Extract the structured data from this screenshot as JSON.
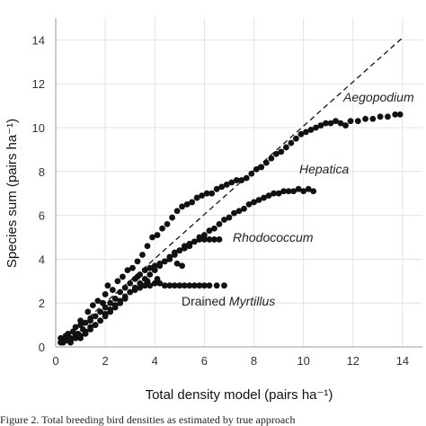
{
  "caption": "Figure 2. Total breeding bird densities as estimated by true approach",
  "chart_data": {
    "type": "scatter",
    "xlabel": "Total density model (pairs ha⁻¹)",
    "ylabel": "Species sum (pairs ha⁻¹)",
    "xlim": [
      0,
      14.8
    ],
    "ylim": [
      0,
      15
    ],
    "xticks": [
      0,
      2,
      4,
      6,
      8,
      10,
      12,
      14
    ],
    "yticks": [
      0,
      2,
      4,
      6,
      8,
      10,
      12,
      14
    ],
    "grid": true,
    "reference_line": {
      "style": "dashed",
      "x": [
        0.25,
        14.0
      ],
      "y": [
        0.25,
        14.1
      ]
    },
    "annotations": [
      {
        "text": "Aegopodium",
        "italic": true,
        "x": 11.6,
        "y": 11.4
      },
      {
        "text": "Hepatica",
        "italic": true,
        "x": 9.7,
        "y": 8.1
      },
      {
        "text": "Rhodococcum",
        "italic": true,
        "x": 7.3,
        "y": 5.0
      },
      {
        "prefix": "Drained ",
        "text": "Myrtillus",
        "italic": true,
        "x": 5.1,
        "y": 1.9
      }
    ],
    "colors": {
      "points": "#111111",
      "grid": "#e3e3e3",
      "axis": "#999999",
      "reference": "#222222"
    },
    "series": [
      {
        "points": [
          [
            0.3,
            0.3
          ],
          [
            0.5,
            0.6
          ],
          [
            0.6,
            0.4
          ],
          [
            0.8,
            0.9
          ],
          [
            1.0,
            1.2
          ],
          [
            1.1,
            0.8
          ],
          [
            1.3,
            1.6
          ],
          [
            1.4,
            1.3
          ],
          [
            1.5,
            1.9
          ],
          [
            1.7,
            2.1
          ],
          [
            1.9,
            2.0
          ],
          [
            2.0,
            2.4
          ],
          [
            2.1,
            2.8
          ],
          [
            2.3,
            2.6
          ],
          [
            2.5,
            3.0
          ],
          [
            2.7,
            3.2
          ],
          [
            2.9,
            3.5
          ],
          [
            3.1,
            3.6
          ],
          [
            3.3,
            3.9
          ],
          [
            3.5,
            4.2
          ],
          [
            3.7,
            4.6
          ],
          [
            3.9,
            5.0
          ],
          [
            4.1,
            5.1
          ],
          [
            4.3,
            5.4
          ],
          [
            4.5,
            5.6
          ],
          [
            4.7,
            5.9
          ],
          [
            4.9,
            6.2
          ],
          [
            5.1,
            6.4
          ],
          [
            5.3,
            6.5
          ],
          [
            5.5,
            6.6
          ],
          [
            5.7,
            6.8
          ],
          [
            5.9,
            6.9
          ],
          [
            6.1,
            7.0
          ],
          [
            6.3,
            7.0
          ],
          [
            6.5,
            7.2
          ],
          [
            6.7,
            7.3
          ],
          [
            6.9,
            7.4
          ],
          [
            7.1,
            7.5
          ],
          [
            7.3,
            7.6
          ],
          [
            7.5,
            7.6
          ],
          [
            7.7,
            7.7
          ],
          [
            7.9,
            7.9
          ],
          [
            8.1,
            8.1
          ],
          [
            8.3,
            8.2
          ],
          [
            8.5,
            8.4
          ],
          [
            8.7,
            8.6
          ],
          [
            8.9,
            8.8
          ],
          [
            9.1,
            8.9
          ],
          [
            9.3,
            9.1
          ],
          [
            9.5,
            9.3
          ],
          [
            9.7,
            9.5
          ],
          [
            9.9,
            9.7
          ],
          [
            10.1,
            9.8
          ],
          [
            10.3,
            9.9
          ],
          [
            10.5,
            10.0
          ],
          [
            10.7,
            10.1
          ],
          [
            10.9,
            10.2
          ],
          [
            11.1,
            10.2
          ],
          [
            11.3,
            10.3
          ],
          [
            11.5,
            10.2
          ],
          [
            11.7,
            10.1
          ],
          [
            11.9,
            10.3
          ],
          [
            12.2,
            10.3
          ],
          [
            12.5,
            10.4
          ],
          [
            12.8,
            10.4
          ],
          [
            13.1,
            10.5
          ],
          [
            13.4,
            10.5
          ],
          [
            13.7,
            10.6
          ],
          [
            13.9,
            10.6
          ]
        ]
      },
      {
        "points": [
          [
            0.2,
            0.4
          ],
          [
            0.4,
            0.5
          ],
          [
            0.5,
            0.3
          ],
          [
            0.7,
            0.7
          ],
          [
            0.9,
            0.6
          ],
          [
            1.0,
            1.0
          ],
          [
            1.2,
            1.1
          ],
          [
            1.4,
            1.2
          ],
          [
            1.6,
            1.4
          ],
          [
            1.8,
            1.6
          ],
          [
            2.0,
            1.8
          ],
          [
            2.2,
            2.0
          ],
          [
            2.4,
            2.2
          ],
          [
            2.6,
            2.5
          ],
          [
            2.8,
            2.7
          ],
          [
            3.0,
            2.9
          ],
          [
            3.2,
            3.1
          ],
          [
            3.4,
            3.3
          ],
          [
            3.6,
            3.5
          ],
          [
            3.8,
            3.6
          ],
          [
            4.0,
            3.7
          ],
          [
            4.2,
            3.8
          ],
          [
            4.4,
            3.9
          ],
          [
            4.6,
            4.0
          ],
          [
            4.8,
            4.2
          ],
          [
            5.0,
            4.4
          ],
          [
            5.2,
            4.5
          ],
          [
            5.4,
            4.6
          ],
          [
            5.6,
            4.8
          ],
          [
            5.8,
            5.0
          ],
          [
            6.0,
            5.1
          ],
          [
            6.2,
            5.3
          ],
          [
            6.4,
            5.4
          ],
          [
            6.6,
            5.6
          ],
          [
            6.8,
            5.8
          ],
          [
            7.0,
            5.9
          ],
          [
            7.2,
            6.1
          ],
          [
            7.4,
            6.2
          ],
          [
            7.6,
            6.3
          ],
          [
            7.8,
            6.5
          ],
          [
            8.0,
            6.6
          ],
          [
            8.2,
            6.7
          ],
          [
            8.4,
            6.8
          ],
          [
            8.6,
            6.9
          ],
          [
            8.8,
            7.0
          ],
          [
            9.0,
            7.0
          ],
          [
            9.2,
            7.1
          ],
          [
            9.4,
            7.1
          ],
          [
            9.6,
            7.1
          ],
          [
            9.8,
            7.2
          ],
          [
            10.0,
            7.1
          ],
          [
            10.2,
            7.2
          ],
          [
            10.4,
            7.1
          ]
        ]
      },
      {
        "points": [
          [
            0.3,
            0.2
          ],
          [
            0.6,
            0.3
          ],
          [
            0.8,
            0.5
          ],
          [
            1.0,
            0.4
          ],
          [
            1.2,
            0.7
          ],
          [
            1.4,
            0.9
          ],
          [
            1.6,
            1.0
          ],
          [
            1.8,
            1.2
          ],
          [
            2.0,
            1.4
          ],
          [
            2.2,
            1.6
          ],
          [
            2.4,
            1.8
          ],
          [
            2.6,
            2.0
          ],
          [
            2.8,
            2.2
          ],
          [
            3.0,
            2.5
          ],
          [
            3.2,
            2.7
          ],
          [
            3.4,
            2.9
          ],
          [
            3.6,
            3.1
          ],
          [
            3.8,
            3.3
          ],
          [
            4.0,
            3.5
          ],
          [
            4.2,
            3.7
          ],
          [
            4.4,
            3.9
          ],
          [
            4.6,
            4.1
          ],
          [
            4.8,
            4.3
          ],
          [
            5.0,
            4.4
          ],
          [
            5.2,
            4.6
          ],
          [
            5.4,
            4.7
          ],
          [
            5.6,
            4.8
          ],
          [
            5.8,
            4.9
          ],
          [
            6.0,
            4.9
          ],
          [
            6.2,
            4.9
          ],
          [
            6.4,
            4.9
          ],
          [
            6.6,
            4.9
          ],
          [
            4.9,
            3.8
          ],
          [
            5.1,
            3.7
          ]
        ]
      },
      {
        "points": [
          [
            0.2,
            0.2
          ],
          [
            0.4,
            0.3
          ],
          [
            0.6,
            0.2
          ],
          [
            0.8,
            0.4
          ],
          [
            1.0,
            0.5
          ],
          [
            1.2,
            0.6
          ],
          [
            1.4,
            0.8
          ],
          [
            1.6,
            1.0
          ],
          [
            1.8,
            1.2
          ],
          [
            2.0,
            1.5
          ],
          [
            2.2,
            1.7
          ],
          [
            2.4,
            1.9
          ],
          [
            2.6,
            2.1
          ],
          [
            2.8,
            2.3
          ],
          [
            3.0,
            2.5
          ],
          [
            3.2,
            2.6
          ],
          [
            3.4,
            2.7
          ],
          [
            3.6,
            2.8
          ],
          [
            3.8,
            2.8
          ],
          [
            4.0,
            2.9
          ],
          [
            4.2,
            2.9
          ],
          [
            4.4,
            2.8
          ],
          [
            4.6,
            2.8
          ],
          [
            4.8,
            2.8
          ],
          [
            5.0,
            2.8
          ],
          [
            5.2,
            2.8
          ],
          [
            5.4,
            2.8
          ],
          [
            5.6,
            2.8
          ],
          [
            5.8,
            2.8
          ],
          [
            6.0,
            2.8
          ],
          [
            6.2,
            2.8
          ],
          [
            6.5,
            2.8
          ],
          [
            6.8,
            2.8
          ],
          [
            3.3,
            3.2
          ],
          [
            3.7,
            3.0
          ],
          [
            4.1,
            3.1
          ]
        ]
      }
    ]
  }
}
